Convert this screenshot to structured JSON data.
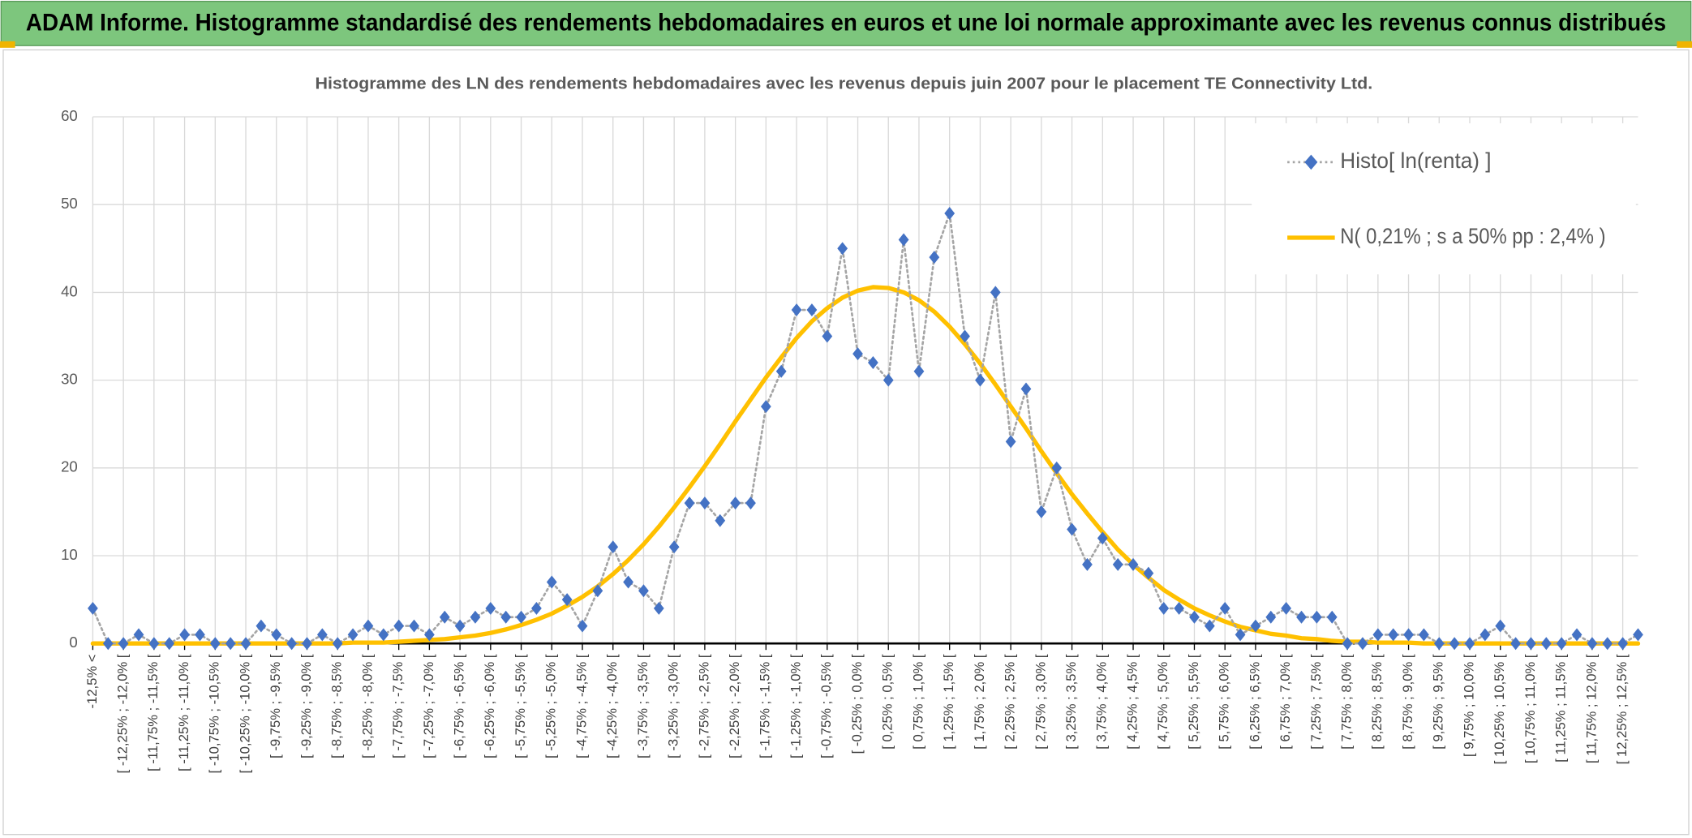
{
  "chart_data": {
    "type": "line",
    "title": "ADAM Informe. Histogramme standardisé des rendements hebdomadaires en euros et une loi normale approximante avec les revenus connus distribués",
    "subtitle": "Histogramme des LN des rendements hebdomadaires avec les revenus depuis juin 2007 pour le placement TE Connectivity Ltd.",
    "categories": [
      "-12,5% <",
      null,
      "[ -12,25% ; -12,0% [",
      null,
      "[ -11,75% ; -11,5% [",
      null,
      "[ -11,25% ; -11,0% [",
      null,
      "[ -10,75% ; -10,5% [",
      null,
      "[ -10,25% ; -10,0% [",
      null,
      "[ -9,75% ; -9,5% [",
      null,
      "[ -9,25% ; -9,0% [",
      null,
      "[ -8,75% ; -8,5% [",
      null,
      "[ -8,25% ; -8,0% [",
      null,
      "[ -7,75% ; -7,5% [",
      null,
      "[ -7,25% ; -7,0% [",
      null,
      "[ -6,75% ; -6,5% [",
      null,
      "[ -6,25% ; -6,0% [",
      null,
      "[ -5,75% ; -5,5% [",
      null,
      "[ -5,25% ; -5,0% [",
      null,
      "[ -4,75% ; -4,5% [",
      null,
      "[ -4,25% ; -4,0% [",
      null,
      "[ -3,75% ; -3,5% [",
      null,
      "[ -3,25% ; -3,0% [",
      null,
      "[ -2,75% ; -2,5% [",
      null,
      "[ -2,25% ; -2,0% [",
      null,
      "[ -1,75% ; -1,5% [",
      null,
      "[ -1,25% ; -1,0% [",
      null,
      "[ -0,75% ; -0,5% [",
      null,
      "[ -0,25% ; 0,0% [",
      null,
      "[ 0,25% ; 0,5% [",
      null,
      "[ 0,75% ; 1,0% [",
      null,
      "[ 1,25% ; 1,5% [",
      null,
      "[ 1,75% ; 2,0% [",
      null,
      "[ 2,25% ; 2,5% [",
      null,
      "[ 2,75% ; 3,0% [",
      null,
      "[ 3,25% ; 3,5% [",
      null,
      "[ 3,75% ; 4,0% [",
      null,
      "[ 4,25% ; 4,5% [",
      null,
      "[ 4,75% ; 5,0% [",
      null,
      "[ 5,25% ; 5,5% [",
      null,
      "[ 5,75% ; 6,0% [",
      null,
      "[ 6,25% ; 6,5% [",
      null,
      "[ 6,75% ; 7,0% [",
      null,
      "[ 7,25% ; 7,5% [",
      null,
      "[ 7,75% ; 8,0% [",
      null,
      "[ 8,25% ; 8,5% [",
      null,
      "[ 8,75% ; 9,0% [",
      null,
      "[ 9,25% ; 9,5% [",
      null,
      "[ 9,75% ; 10,0% [",
      null,
      "[ 10,25% ; 10,5% [",
      null,
      "[ 10,75% ; 11,0% [",
      null,
      "[ 11,25% ; 11,5% [",
      null,
      "[ 11,75% ; 12,0% [",
      null,
      "[ 12,25% ; 12,5% [",
      null
    ],
    "series": [
      {
        "name": "Histo[ ln(renta) ]",
        "color": "#4472c4",
        "line_color": "#a5a5a5",
        "marker": "diamond",
        "dash": "dotted",
        "values": [
          4,
          0,
          0,
          1,
          0,
          0,
          1,
          1,
          0,
          0,
          0,
          2,
          1,
          0,
          0,
          1,
          0,
          1,
          2,
          1,
          2,
          2,
          1,
          3,
          2,
          3,
          4,
          3,
          3,
          4,
          7,
          5,
          2,
          6,
          11,
          7,
          6,
          4,
          11,
          16,
          16,
          14,
          16,
          16,
          27,
          31,
          38,
          38,
          35,
          45,
          33,
          32,
          30,
          46,
          31,
          44,
          49,
          35,
          30,
          40,
          23,
          29,
          15,
          20,
          13,
          9,
          12,
          9,
          9,
          8,
          4,
          4,
          3,
          2,
          4,
          1,
          2,
          3,
          4,
          3,
          3,
          3,
          0,
          0,
          1,
          1,
          1,
          1,
          0,
          0,
          0,
          1,
          2,
          0,
          0,
          0,
          0,
          1,
          0,
          0,
          0,
          1
        ]
      },
      {
        "name": "N( 0,21% ; s a 50% pp : 2,4% )",
        "color": "#ffc000",
        "marker": "none",
        "dash": "solid",
        "values": [
          0,
          0,
          0,
          0,
          0,
          0,
          0,
          0,
          0,
          0,
          0,
          0,
          0,
          0,
          0,
          0,
          0,
          0.1,
          0.1,
          0.1,
          0.2,
          0.3,
          0.4,
          0.5,
          0.7,
          0.9,
          1.2,
          1.6,
          2.1,
          2.7,
          3.4,
          4.3,
          5.3,
          6.5,
          7.9,
          9.5,
          11.3,
          13.3,
          15.5,
          17.8,
          20.2,
          22.7,
          25.3,
          27.8,
          30.3,
          32.6,
          34.8,
          36.7,
          38.2,
          39.4,
          40.2,
          40.6,
          40.5,
          40.0,
          39.1,
          37.8,
          36.1,
          34.1,
          31.9,
          29.5,
          27.0,
          24.5,
          21.9,
          19.4,
          17.0,
          14.8,
          12.7,
          10.7,
          9.0,
          7.5,
          6.1,
          5.0,
          4.0,
          3.2,
          2.5,
          1.9,
          1.5,
          1.1,
          0.9,
          0.6,
          0.5,
          0.3,
          0.2,
          0.2,
          0.1,
          0.1,
          0.1,
          0,
          0,
          0,
          0,
          0,
          0,
          0,
          0,
          0,
          0,
          0,
          0,
          0,
          0,
          0
        ]
      }
    ],
    "ylim": [
      0,
      60
    ],
    "yticks": [
      0,
      10,
      20,
      30,
      40,
      50,
      60
    ],
    "grid": true,
    "legend": "top-right"
  }
}
